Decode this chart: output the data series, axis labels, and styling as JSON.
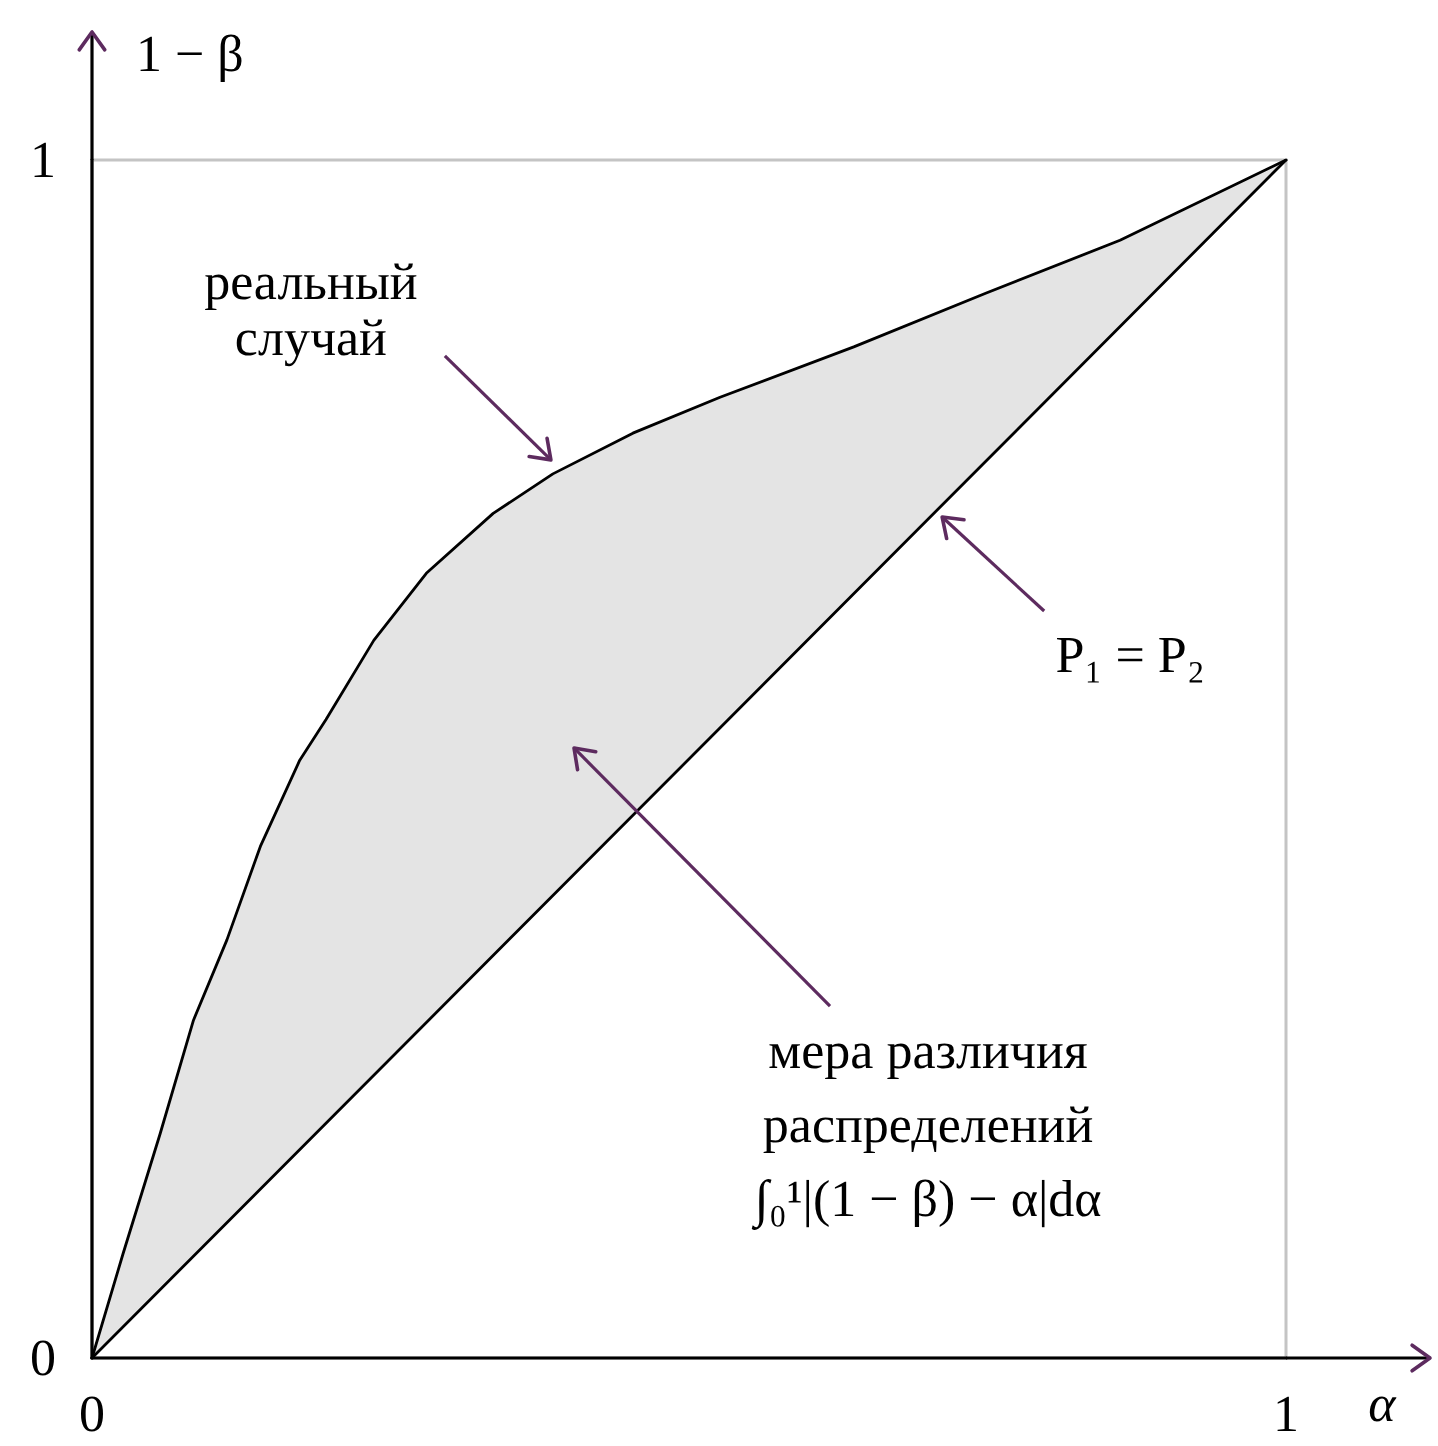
{
  "chart_data": {
    "type": "line",
    "xlabel": "α",
    "ylabel": "1 − β",
    "xlim": [
      0,
      1
    ],
    "ylim": [
      0,
      1
    ],
    "xticks": [
      0,
      1
    ],
    "yticks": [
      0,
      1
    ],
    "series": [
      {
        "x": [
          0,
          0.026,
          0.057,
          0.085,
          0.113,
          0.141,
          0.174,
          0.196,
          0.236,
          0.28,
          0.336,
          0.386,
          0.453,
          0.526,
          0.638,
          0.749,
          0.861,
          1
        ],
        "values": [
          0,
          0.087,
          0.187,
          0.282,
          0.349,
          0.427,
          0.499,
          0.533,
          0.599,
          0.655,
          0.705,
          0.738,
          0.772,
          0.802,
          0.844,
          0.889,
          0.933,
          1
        ],
        "lower": [
          0,
          0.026,
          0.057,
          0.085,
          0.113,
          0.141,
          0.174,
          0.196,
          0.236,
          0.28,
          0.336,
          0.386,
          0.453,
          0.526,
          0.638,
          0.749,
          0.861,
          1
        ],
        "upper": [
          0,
          0.087,
          0.187,
          0.282,
          0.349,
          0.427,
          0.499,
          0.533,
          0.599,
          0.655,
          0.705,
          0.738,
          0.772,
          0.802,
          0.844,
          0.889,
          0.933,
          1
        ],
        "color": "#000000"
      },
      {
        "x": [
          0,
          1
        ],
        "values": [
          0,
          1
        ],
        "color": "#000000"
      }
    ],
    "annotations": [
      {
        "text": "реальный\nслучай",
        "x": 0.386,
        "y": 0.738
      },
      {
        "text": "P₁ = P₂",
        "x": 0.707,
        "y": 0.707
      },
      "мера различия\nраспределений\n∫₀¹|(1 − β) − α|dα"
    ]
  }
}
